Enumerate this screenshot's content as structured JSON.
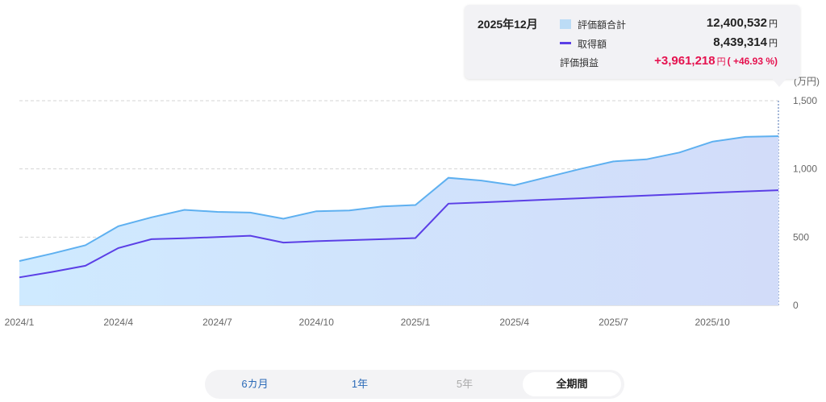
{
  "chart_data": {
    "type": "area",
    "x": [
      "2024/1",
      "2024/2",
      "2024/3",
      "2024/4",
      "2024/5",
      "2024/6",
      "2024/7",
      "2024/8",
      "2024/9",
      "2024/10",
      "2024/11",
      "2024/12",
      "2025/1",
      "2025/2",
      "2025/3",
      "2025/4",
      "2025/5",
      "2025/6",
      "2025/7",
      "2025/8",
      "2025/9",
      "2025/10",
      "2025/11",
      "2025/12"
    ],
    "xticks": [
      "2024/1",
      "2024/4",
      "2024/7",
      "2024/10",
      "2025/1",
      "2025/4",
      "2025/7",
      "2025/10"
    ],
    "series": [
      {
        "name": "評価額合計",
        "kind": "area",
        "color": "#5eb0f0",
        "values": [
          325,
          380,
          440,
          580,
          645,
          700,
          685,
          680,
          635,
          690,
          695,
          725,
          735,
          935,
          915,
          880,
          940,
          1000,
          1055,
          1070,
          1120,
          1200,
          1235,
          1240
        ]
      },
      {
        "name": "取得額",
        "kind": "line",
        "color": "#5b3fe6",
        "values": [
          205,
          245,
          290,
          420,
          485,
          492,
          500,
          510,
          460,
          470,
          478,
          485,
          493,
          745,
          755,
          765,
          775,
          785,
          795,
          805,
          815,
          825,
          835,
          844
        ]
      }
    ],
    "yunit": "(万円)",
    "yticks": [
      "0",
      "500",
      "1,000",
      "1,500"
    ],
    "ylim": [
      0,
      1500
    ],
    "grid": true,
    "legend": "tooltip top-right"
  },
  "tooltip": {
    "date": "2025年12月",
    "rows": [
      {
        "label": "評価額合計",
        "value": "12,400,532",
        "unit": "円"
      },
      {
        "label": "取得額",
        "value": "8,439,314",
        "unit": "円"
      }
    ],
    "gain": {
      "label": "評価損益",
      "value": "+3,961,218",
      "unit": "円",
      "pct": "( +46.93 %)"
    }
  },
  "period_selector": [
    {
      "label": "6カ月",
      "state": "link"
    },
    {
      "label": "1年",
      "state": "link"
    },
    {
      "label": "5年",
      "state": "disabled"
    },
    {
      "label": "全期間",
      "state": "active"
    }
  ]
}
